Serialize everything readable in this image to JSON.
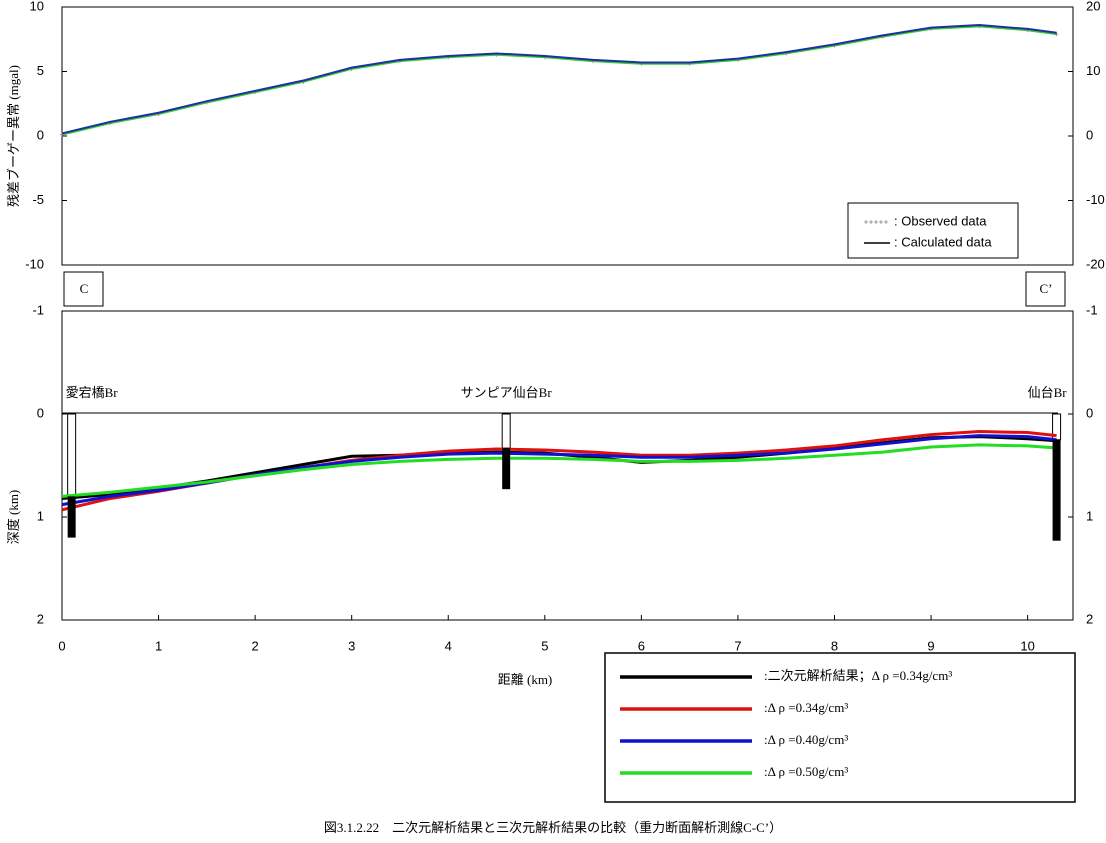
{
  "chart_data": [
    {
      "type": "line",
      "ylabel": "残差ブーゲー異常 (mgal)",
      "xlim": [
        0,
        10.47
      ],
      "ylim": [
        -10,
        10
      ],
      "yticks": [
        -10,
        -5,
        0,
        5,
        10
      ],
      "y2lim": [
        -20,
        20
      ],
      "y2ticks": [
        -20,
        -10,
        0,
        10,
        20
      ],
      "x": [
        0,
        0.5,
        1,
        1.5,
        2,
        2.5,
        3,
        3.5,
        4,
        4.5,
        5,
        5.5,
        6,
        6.5,
        7,
        7.5,
        8,
        8.5,
        9,
        9.5,
        10,
        10.3
      ],
      "series": [
        {
          "name": ": Observed data",
          "color": "#33cc33",
          "marker": "+",
          "values": [
            0.1,
            1.0,
            1.7,
            2.6,
            3.4,
            4.2,
            5.2,
            5.8,
            6.1,
            6.3,
            6.1,
            5.8,
            5.6,
            5.6,
            5.9,
            6.4,
            7.0,
            7.7,
            8.3,
            8.5,
            8.2,
            7.9
          ]
        },
        {
          "name": ": Calculated data",
          "color": "#1f2fa0",
          "values": [
            0.2,
            1.1,
            1.8,
            2.7,
            3.5,
            4.3,
            5.3,
            5.9,
            6.2,
            6.4,
            6.2,
            5.9,
            5.7,
            5.7,
            6.0,
            6.5,
            7.1,
            7.8,
            8.4,
            8.6,
            8.3,
            8.0
          ]
        }
      ],
      "legend": "lower right"
    },
    {
      "type": "line",
      "ylabel": "深度 (km)",
      "xlabel": "距離 (km)",
      "end_labels": [
        "C",
        "C’"
      ],
      "xlim": [
        0,
        10.47
      ],
      "xticks": [
        0,
        1,
        2,
        3,
        4,
        5,
        6,
        7,
        8,
        9,
        10
      ],
      "ylim": [
        -1,
        2
      ],
      "y_inverted": true,
      "yticks": [
        -1,
        0,
        1,
        2
      ],
      "y2ticks": [
        -1,
        0,
        1,
        2
      ],
      "boreholes": [
        {
          "label": "愛宕橋Br",
          "x": 0.1,
          "top": 0.8,
          "bottom": 1.2
        },
        {
          "label": "サンピア仙台Br",
          "x": 4.6,
          "top": 0.33,
          "bottom": 0.73
        },
        {
          "label": "仙台Br",
          "x": 10.3,
          "top": 0.25,
          "bottom": 1.23
        }
      ],
      "x": [
        0,
        0.5,
        1,
        1.5,
        2,
        2.5,
        3,
        3.5,
        4,
        4.5,
        5,
        5.5,
        6,
        6.5,
        7,
        7.5,
        8,
        8.5,
        9,
        9.5,
        10,
        10.3
      ],
      "series": [
        {
          "name": ":二次元解析結果；Δ ρ =0.34g/cm³",
          "color": "#000000",
          "values": [
            0.82,
            0.78,
            0.72,
            0.65,
            0.57,
            0.49,
            0.41,
            0.4,
            0.38,
            0.37,
            0.38,
            0.42,
            0.47,
            0.45,
            0.42,
            0.38,
            0.33,
            0.28,
            0.23,
            0.22,
            0.24,
            0.26
          ]
        },
        {
          "name": ":Δ ρ =0.34g/cm³",
          "color": "#e01010",
          "values": [
            0.93,
            0.82,
            0.75,
            0.67,
            0.59,
            0.52,
            0.45,
            0.4,
            0.36,
            0.34,
            0.35,
            0.37,
            0.4,
            0.4,
            0.38,
            0.35,
            0.31,
            0.25,
            0.2,
            0.17,
            0.18,
            0.21
          ]
        },
        {
          "name": ":Δ ρ =0.40g/cm³",
          "color": "#1010d0",
          "values": [
            0.88,
            0.8,
            0.74,
            0.67,
            0.59,
            0.52,
            0.46,
            0.42,
            0.39,
            0.38,
            0.39,
            0.4,
            0.42,
            0.42,
            0.4,
            0.38,
            0.34,
            0.29,
            0.24,
            0.21,
            0.22,
            0.25
          ]
        },
        {
          "name": ":Δ ρ =0.50g/cm³",
          "color": "#22dd22",
          "values": [
            0.8,
            0.76,
            0.71,
            0.66,
            0.6,
            0.54,
            0.49,
            0.46,
            0.44,
            0.43,
            0.43,
            0.44,
            0.46,
            0.46,
            0.45,
            0.43,
            0.4,
            0.37,
            0.32,
            0.3,
            0.31,
            0.33
          ]
        }
      ]
    }
  ],
  "caption": "図3.1.2.22　二次元解析結果と三次元解析結果の比較（重力断面解析測線C-C’）"
}
